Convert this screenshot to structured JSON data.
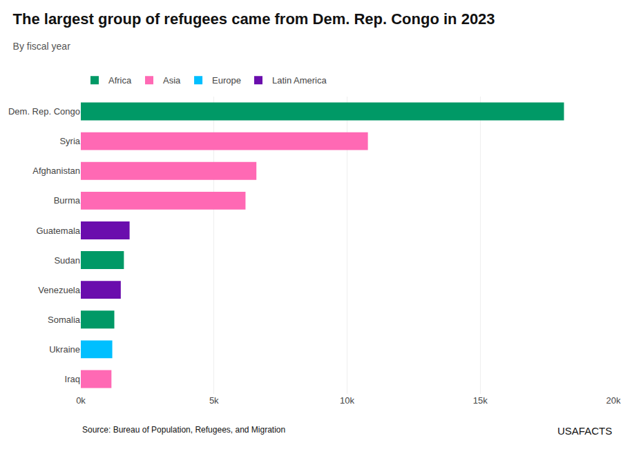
{
  "chart_data": {
    "type": "bar",
    "orientation": "horizontal",
    "title": "The largest group of refugees came from Dem. Rep. Congo in 2023",
    "subtitle": "By fiscal year",
    "annotations": [
      "Source: Bureau of Population, Refugees, and Migration",
      "USAFACTS"
    ],
    "categories": [
      "Dem. Rep. Congo",
      "Syria",
      "Afghanistan",
      "Burma",
      "Guatemala",
      "Sudan",
      "Venezuela",
      "Somalia",
      "Ukraine",
      "Iraq"
    ],
    "series": [
      {
        "name": "Africa",
        "color": "#009966",
        "values": [
          18145,
          null,
          null,
          null,
          null,
          1618,
          null,
          1258,
          null,
          null
        ]
      },
      {
        "name": "Asia",
        "color": "#FF69B4",
        "values": [
          null,
          10781,
          6594,
          6185,
          null,
          null,
          null,
          null,
          null,
          1150
        ]
      },
      {
        "name": "Europe",
        "color": "#00BFFF",
        "values": [
          null,
          null,
          null,
          null,
          null,
          null,
          null,
          null,
          1182,
          null
        ]
      },
      {
        "name": "Latin America",
        "color": "#6A0DAD",
        "values": [
          null,
          null,
          null,
          null,
          1832,
          null,
          1501,
          null,
          null,
          null
        ]
      }
    ],
    "xlim": [
      0,
      20000
    ],
    "xticks": [
      {
        "value": 0,
        "label": "0k"
      },
      {
        "value": 5000,
        "label": "5k"
      },
      {
        "value": 10000,
        "label": "10k"
      },
      {
        "value": 15000,
        "label": "15k"
      },
      {
        "value": 20000,
        "label": "20k"
      }
    ],
    "grid": true,
    "legend": "upper left"
  }
}
